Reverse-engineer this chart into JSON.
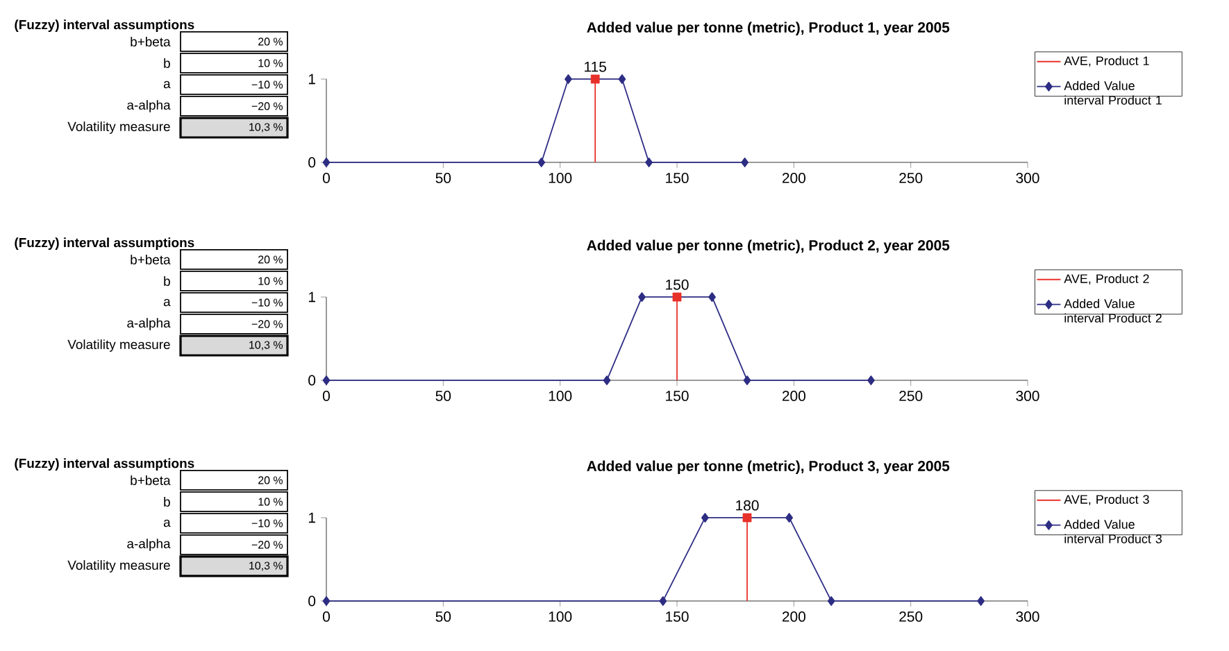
{
  "chart_data": [
    {
      "type": "other",
      "title": "(Fuzzy) interval assumptions",
      "annotations": [
        "b+beta",
        "20 %",
        "b",
        "10 %",
        "a",
        "−10 %",
        "a-alpha",
        "−20 %",
        "Volatility measure",
        "10,3 %"
      ]
    },
    {
      "type": "line",
      "title": "Added value per tonne (metric), Product 1, year 2005",
      "xlim": [
        0,
        300
      ],
      "xticks": [
        0,
        50,
        100,
        150,
        200,
        250,
        300
      ],
      "ylim": [
        0,
        1
      ],
      "yticks": [
        0,
        1
      ],
      "legend": "right",
      "grid": false,
      "line_style": "solid",
      "annotations": [
        {
          "text": "115",
          "x": 115,
          "y": 1
        }
      ],
      "series": [
        {
          "name": "AVE, Product 1",
          "color": "#e8302a",
          "x": [
            115,
            115
          ],
          "values": [
            0,
            1
          ],
          "marker": "none"
        },
        {
          "type": "scatter",
          "color": "#e8302a",
          "x": [
            115
          ],
          "values": [
            1
          ],
          "marker": "square"
        },
        {
          "name": "Added Value interval Product 1",
          "color": "#2e2d84",
          "x": [
            0,
            92,
            103.5,
            126.5,
            138,
            179
          ],
          "values": [
            0,
            0,
            1,
            1,
            0,
            0
          ],
          "marker": "diamond"
        }
      ]
    },
    {
      "type": "other",
      "title": "(Fuzzy) interval assumptions",
      "annotations": [
        "b+beta",
        "20 %",
        "b",
        "10 %",
        "a",
        "−10 %",
        "a-alpha",
        "−20 %",
        "Volatility measure",
        "10,3 %"
      ]
    },
    {
      "type": "line",
      "title": "Added value per tonne (metric), Product 2, year 2005",
      "xlim": [
        0,
        300
      ],
      "xticks": [
        0,
        50,
        100,
        150,
        200,
        250,
        300
      ],
      "ylim": [
        0,
        1
      ],
      "yticks": [
        0,
        1
      ],
      "legend": "right",
      "grid": false,
      "line_style": "solid",
      "annotations": [
        {
          "text": "150",
          "x": 150,
          "y": 1
        }
      ],
      "series": [
        {
          "name": "AVE, Product 2",
          "color": "#e8302a",
          "x": [
            150,
            150
          ],
          "values": [
            0,
            1
          ],
          "marker": "none"
        },
        {
          "type": "scatter",
          "color": "#e8302a",
          "x": [
            150
          ],
          "values": [
            1
          ],
          "marker": "square"
        },
        {
          "name": "Added Value interval Product 2",
          "color": "#2e2d84",
          "x": [
            0,
            120,
            135,
            165,
            180,
            233
          ],
          "values": [
            0,
            0,
            1,
            1,
            0,
            0
          ],
          "marker": "diamond"
        }
      ]
    },
    {
      "type": "other",
      "title": "(Fuzzy) interval assumptions",
      "annotations": [
        "b+beta",
        "20 %",
        "b",
        "10 %",
        "a",
        "−10 %",
        "a-alpha",
        "−20 %",
        "Volatility measure",
        "10,3 %"
      ]
    },
    {
      "type": "line",
      "title": "Added value per tonne (metric), Product 3, year 2005",
      "xlim": [
        0,
        300
      ],
      "xticks": [
        0,
        50,
        100,
        150,
        200,
        250,
        300
      ],
      "ylim": [
        0,
        1
      ],
      "yticks": [
        0,
        1
      ],
      "legend": "right",
      "grid": false,
      "line_style": "solid",
      "annotations": [
        {
          "text": "180",
          "x": 180,
          "y": 1
        }
      ],
      "series": [
        {
          "name": "AVE, Product 3",
          "color": "#e8302a",
          "x": [
            180,
            180
          ],
          "values": [
            0,
            1
          ],
          "marker": "none"
        },
        {
          "type": "scatter",
          "color": "#e8302a",
          "x": [
            180
          ],
          "values": [
            1
          ],
          "marker": "square"
        },
        {
          "name": "Added Value interval Product 3",
          "color": "#2e2d84",
          "x": [
            0,
            144,
            162,
            198,
            216,
            280
          ],
          "values": [
            0,
            0,
            1,
            1,
            0,
            0
          ],
          "marker": "diamond"
        }
      ]
    }
  ]
}
